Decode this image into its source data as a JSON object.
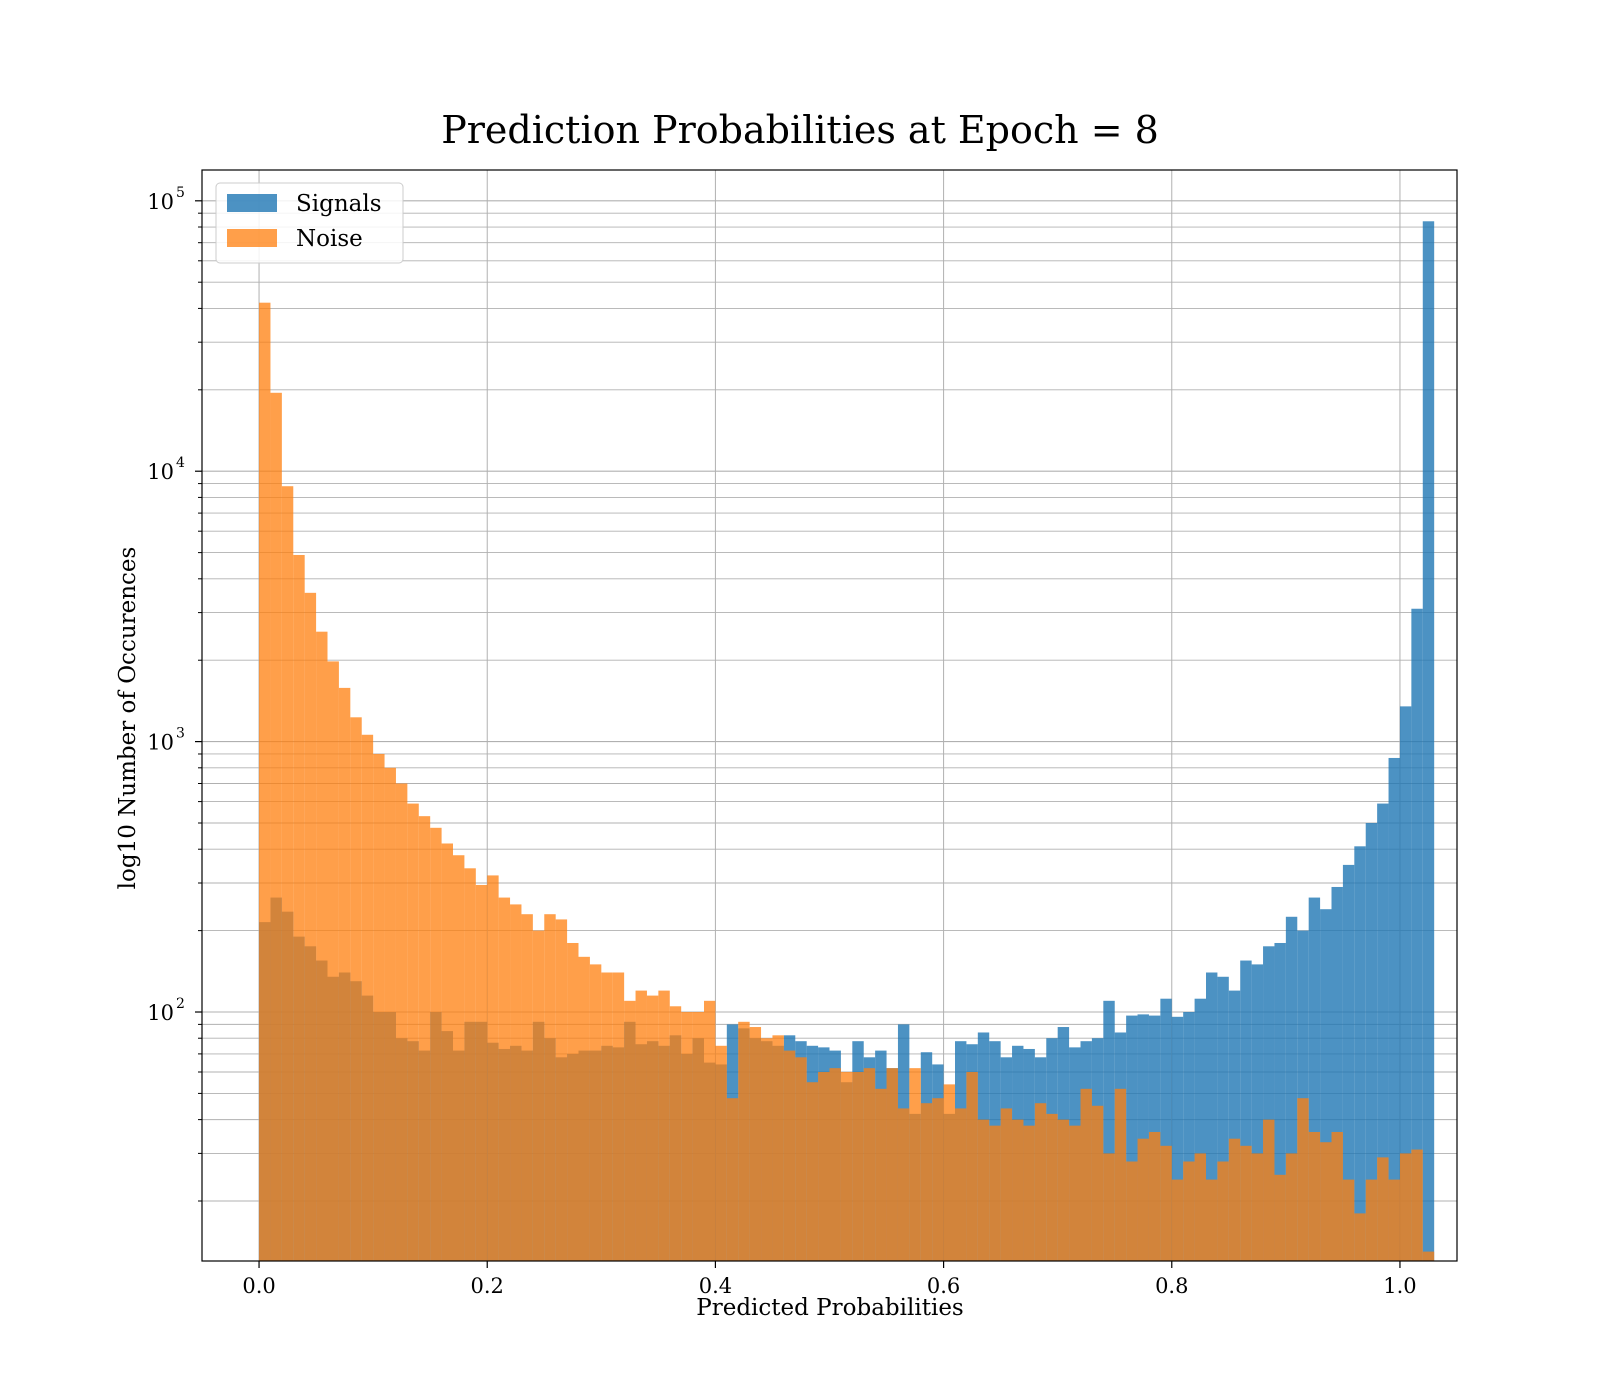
{
  "chart_data": {
    "type": "bar",
    "title": "Prediction Probabilities at Epoch = 8",
    "xlabel": "Predicted Probabilities",
    "ylabel": "log10 Number of Occurences",
    "x_range": [
      -0.05,
      1.05
    ],
    "y_scale": "log",
    "y_range": [
      12,
      130000
    ],
    "x_ticks": [
      {
        "value": 0.0,
        "label": "0.0"
      },
      {
        "value": 0.2,
        "label": "0.2"
      },
      {
        "value": 0.4,
        "label": "0.4"
      },
      {
        "value": 0.6,
        "label": "0.6"
      },
      {
        "value": 0.8,
        "label": "0.8"
      },
      {
        "value": 1.0,
        "label": "1.0"
      }
    ],
    "y_ticks": [
      {
        "value": 100,
        "base": "10",
        "exp": "2"
      },
      {
        "value": 1000,
        "base": "10",
        "exp": "3"
      },
      {
        "value": 10000,
        "base": "10",
        "exp": "4"
      },
      {
        "value": 100000,
        "base": "10",
        "exp": "5"
      }
    ],
    "grid": true,
    "legend_position": "top-left",
    "bin_width": 0.01,
    "series": [
      {
        "name": "Signals",
        "color": "#1f77b4",
        "opacity": 0.8,
        "bin_start": 0.0,
        "values": [
          215,
          265,
          235,
          190,
          175,
          155,
          135,
          140,
          130,
          115,
          100,
          100,
          80,
          78,
          72,
          100,
          85,
          72,
          92,
          92,
          77,
          73,
          75,
          72,
          92,
          80,
          68,
          70,
          72,
          72,
          75,
          74,
          92,
          76,
          78,
          75,
          82,
          70,
          80,
          65,
          64,
          90,
          87,
          80,
          78,
          75,
          82,
          78,
          75,
          74,
          72,
          55,
          78,
          68,
          72,
          62,
          90,
          42,
          71,
          64,
          42,
          78,
          76,
          84,
          78,
          68,
          75,
          73,
          68,
          80,
          88,
          74,
          78,
          80,
          110,
          84,
          97,
          98,
          97,
          112,
          96,
          100,
          112,
          140,
          135,
          120,
          155,
          150,
          175,
          180,
          225,
          200,
          265,
          240,
          290,
          350,
          410,
          500,
          590,
          870,
          1350,
          3100,
          84000
        ]
      },
      {
        "name": "Noise",
        "color": "#ff7f0e",
        "opacity": 0.75,
        "bin_start": 0.0,
        "values": [
          42000,
          19500,
          8800,
          4900,
          3550,
          2550,
          1980,
          1580,
          1230,
          1060,
          900,
          800,
          700,
          590,
          530,
          480,
          420,
          380,
          340,
          295,
          320,
          265,
          250,
          230,
          200,
          230,
          220,
          180,
          160,
          150,
          140,
          140,
          110,
          120,
          115,
          120,
          105,
          100,
          100,
          110,
          75,
          48,
          92,
          88,
          80,
          82,
          72,
          68,
          55,
          60,
          62,
          60,
          60,
          62,
          52,
          62,
          44,
          62,
          46,
          48,
          54,
          44,
          60,
          40,
          38,
          44,
          40,
          38,
          46,
          42,
          40,
          38,
          52,
          45,
          30,
          52,
          28,
          34,
          36,
          32,
          24,
          28,
          30,
          24,
          28,
          34,
          32,
          30,
          40,
          25,
          30,
          48,
          36,
          33,
          36,
          24,
          18,
          24,
          29,
          24,
          30,
          31,
          13
        ]
      }
    ]
  }
}
